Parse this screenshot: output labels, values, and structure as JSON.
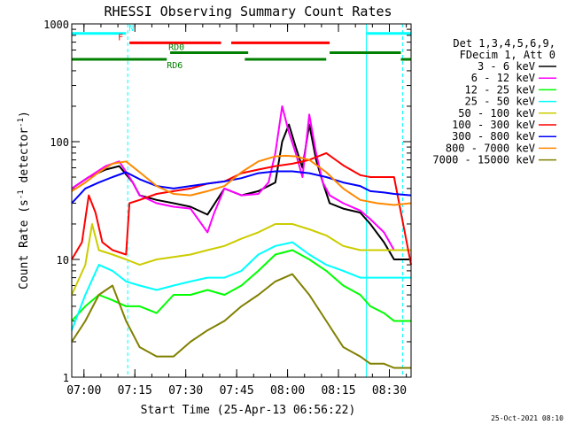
{
  "chart_data": {
    "type": "line",
    "title": "RHESSI Observing Summary Count Rates",
    "xlabel": "Start Time (25-Apr-13 06:56:22)",
    "ylabel": "Count Rate (s⁻¹ detector⁻¹)",
    "ylabel_parts": {
      "a": "Count Rate (s",
      "sup1": "-1",
      "b": " detector",
      "sup2": "-1",
      "c": ")"
    },
    "yscale": "log",
    "ylim": [
      1,
      1000
    ],
    "xlim": [
      0,
      100
    ],
    "x_ticks": [
      {
        "label": "07:00",
        "value": 3.6
      },
      {
        "label": "07:15",
        "value": 18.6
      },
      {
        "label": "07:30",
        "value": 33.6
      },
      {
        "label": "07:45",
        "value": 48.6
      },
      {
        "label": "08:00",
        "value": 63.6
      },
      {
        "label": "08:15",
        "value": 78.6
      },
      {
        "label": "08:30",
        "value": 93.6
      }
    ],
    "y_ticks": [
      {
        "label": "1",
        "value": 1
      },
      {
        "label": "10",
        "value": 10
      },
      {
        "label": "100",
        "value": 100
      },
      {
        "label": "1000",
        "value": 1000
      }
    ],
    "legend_header": [
      "Det 1,3,4,5,6,9,",
      "FDecim 1, Att 0"
    ],
    "legend_position": "right",
    "footer_date": "25-Oct-2021 08:10",
    "markers": [
      {
        "label": "N",
        "color": "#00ffff",
        "segments": [
          [
            0,
            16
          ],
          [
            87,
            100
          ]
        ],
        "y_value": 830
      },
      {
        "label": "F",
        "color": "#ff0000",
        "segments": [
          [
            17,
            44
          ],
          [
            47,
            76
          ]
        ],
        "y_value": 690
      },
      {
        "label": "RD0",
        "color": "#008000",
        "segments": [
          [
            29,
            52
          ],
          [
            76,
            97
          ]
        ],
        "y_value": 570
      },
      {
        "label": "RD6",
        "color": "#008000",
        "segments": [
          [
            0,
            28
          ],
          [
            51,
            75
          ],
          [
            97,
            100
          ]
        ],
        "y_value": 500
      }
    ],
    "saa_lines": [
      16.5,
      86.8,
      97.5
    ],
    "series": [
      {
        "name": "3 - 6 keV",
        "color": "#000000",
        "x": [
          0,
          5,
          10,
          14,
          18,
          20,
          25,
          30,
          35,
          40,
          45,
          50,
          55,
          60,
          62,
          64,
          66,
          68,
          70,
          72,
          74,
          76,
          80,
          85,
          88,
          92,
          95,
          100
        ],
        "y": [
          40,
          50,
          58,
          62,
          45,
          35,
          32,
          30,
          28,
          24,
          40,
          35,
          38,
          45,
          100,
          140,
          90,
          60,
          140,
          70,
          45,
          30,
          27,
          25,
          20,
          14,
          10,
          10
        ]
      },
      {
        "name": "6 - 12 keV",
        "color": "#ff00ff",
        "x": [
          0,
          5,
          10,
          14,
          18,
          20,
          25,
          30,
          35,
          40,
          42,
          45,
          50,
          55,
          58,
          60,
          62,
          64,
          66,
          68,
          70,
          72,
          74,
          76,
          80,
          85,
          88,
          92,
          95,
          100
        ],
        "y": [
          40,
          50,
          62,
          68,
          45,
          35,
          30,
          28,
          27,
          17,
          25,
          40,
          35,
          36,
          45,
          80,
          200,
          120,
          80,
          50,
          170,
          80,
          45,
          35,
          30,
          26,
          22,
          17,
          12,
          12
        ]
      },
      {
        "name": "12 - 25 keV",
        "color": "#00ff00",
        "x": [
          0,
          4,
          8,
          12,
          16,
          20,
          25,
          30,
          35,
          40,
          45,
          50,
          55,
          60,
          65,
          70,
          75,
          80,
          85,
          88,
          92,
          95,
          100
        ],
        "y": [
          3,
          4,
          5,
          4.5,
          4,
          4,
          3.5,
          5,
          5,
          5.5,
          5,
          6,
          8,
          11,
          12,
          10,
          8,
          6,
          5,
          4,
          3.5,
          3,
          3
        ]
      },
      {
        "name": "25 - 50 keV",
        "color": "#00ffff",
        "x": [
          0,
          4,
          8,
          12,
          16,
          20,
          25,
          30,
          35,
          40,
          45,
          50,
          55,
          60,
          65,
          70,
          75,
          80,
          85,
          88,
          92,
          95,
          100
        ],
        "y": [
          2.5,
          5,
          9,
          8,
          6.5,
          6,
          5.5,
          6,
          6.5,
          7,
          7,
          8,
          11,
          13,
          14,
          11,
          9,
          8,
          7,
          7,
          7,
          7,
          7
        ]
      },
      {
        "name": "50 - 100 keV",
        "color": "#cccc00",
        "x": [
          0,
          4,
          6,
          8,
          12,
          16,
          20,
          25,
          30,
          35,
          40,
          45,
          50,
          55,
          60,
          65,
          70,
          75,
          80,
          85,
          88,
          92,
          95,
          100
        ],
        "y": [
          5,
          9,
          20,
          12,
          11,
          10,
          9,
          10,
          10.5,
          11,
          12,
          13,
          15,
          17,
          20,
          20,
          18,
          16,
          13,
          12,
          12,
          12,
          12,
          12
        ]
      },
      {
        "name": "100 - 300 keV",
        "color": "#ff0000",
        "x": [
          0,
          3,
          5,
          7,
          9,
          12,
          16,
          17,
          20,
          25,
          30,
          35,
          40,
          45,
          50,
          55,
          60,
          65,
          70,
          75,
          80,
          85,
          88,
          92,
          95,
          100
        ],
        "y": [
          10,
          14,
          35,
          25,
          14,
          12,
          11,
          30,
          32,
          36,
          38,
          40,
          44,
          46,
          54,
          58,
          62,
          65,
          70,
          80,
          63,
          52,
          50,
          50,
          50,
          9
        ]
      },
      {
        "name": "300 - 800 keV",
        "color": "#0000ff",
        "x": [
          0,
          4,
          8,
          12,
          16,
          20,
          25,
          30,
          35,
          40,
          45,
          50,
          55,
          60,
          65,
          70,
          75,
          80,
          85,
          88,
          92,
          95,
          100
        ],
        "y": [
          30,
          40,
          45,
          50,
          55,
          48,
          42,
          40,
          42,
          44,
          46,
          49,
          54,
          56,
          56,
          54,
          50,
          45,
          42,
          38,
          37,
          36,
          35
        ]
      },
      {
        "name": "800 - 7000 keV",
        "color": "#ff8800",
        "x": [
          0,
          4,
          8,
          12,
          16,
          20,
          25,
          30,
          35,
          40,
          45,
          50,
          55,
          60,
          63,
          66,
          70,
          75,
          80,
          85,
          90,
          95,
          100
        ],
        "y": [
          38,
          45,
          55,
          65,
          68,
          55,
          42,
          36,
          35,
          38,
          42,
          55,
          68,
          75,
          76,
          75,
          70,
          55,
          40,
          32,
          30,
          29,
          30
        ]
      },
      {
        "name": "7000 - 15000 keV",
        "color": "#808000",
        "x": [
          0,
          4,
          8,
          12,
          16,
          20,
          25,
          30,
          35,
          40,
          45,
          50,
          55,
          60,
          65,
          70,
          75,
          80,
          85,
          88,
          92,
          95,
          100
        ],
        "y": [
          2,
          3,
          5,
          6,
          3,
          1.8,
          1.5,
          1.5,
          2,
          2.5,
          3,
          4,
          5,
          6.5,
          7.5,
          5,
          3,
          1.8,
          1.5,
          1.3,
          1.3,
          1.2,
          1.2
        ]
      }
    ]
  }
}
